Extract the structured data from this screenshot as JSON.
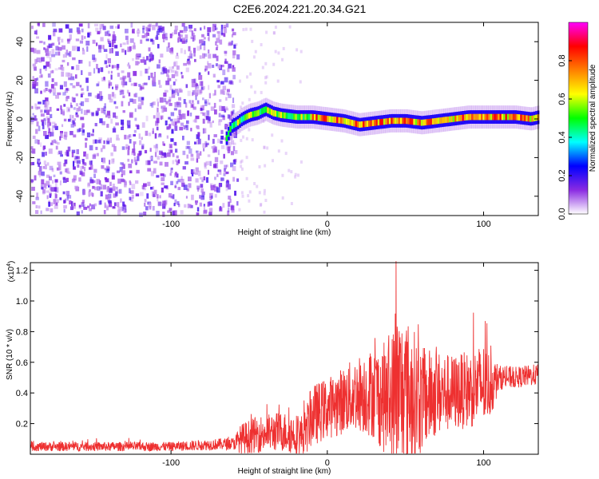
{
  "title": "C2E6.2024.221.20.34.G21",
  "chart_data": [
    {
      "type": "heatmap",
      "xlabel": "Height of straight line (km)",
      "ylabel": "Frequency (Hz)",
      "xlim": [
        -190,
        135
      ],
      "ylim": [
        -50,
        50
      ],
      "xticks": [
        -100,
        0,
        100
      ],
      "yticks": [
        -40,
        -20,
        0,
        20,
        40
      ],
      "colorbar": {
        "label": "Normalized spectral amplitude",
        "range": [
          0.0,
          1.0
        ],
        "ticks": [
          0.0,
          0.2,
          0.4,
          0.6,
          0.8
        ],
        "colors": [
          "#ffffff",
          "#8a2be2",
          "#0000ff",
          "#00ffff",
          "#00ff00",
          "#ffff00",
          "#ff8000",
          "#ff0000",
          "#ff00ff"
        ]
      },
      "ridge": {
        "x": [
          -65,
          -62,
          -58,
          -55,
          -50,
          -45,
          -40,
          -35,
          -30,
          -20,
          -10,
          0,
          10,
          20,
          30,
          40,
          50,
          60,
          70,
          80,
          90,
          100,
          110,
          120,
          130,
          135
        ],
        "y": [
          -10,
          -4,
          -2,
          0,
          2,
          3,
          5,
          3,
          2,
          1,
          1,
          0,
          -1,
          -3,
          -2,
          -1,
          -1,
          -2,
          -1,
          0,
          1,
          1,
          1,
          1,
          0,
          1
        ]
      },
      "noise_region_x": [
        -190,
        -57
      ]
    },
    {
      "type": "line",
      "xlabel": "Height of straight line (km)",
      "ylabel": "SNR (10 * v/v)",
      "yscale_label": "(x10",
      "yscale_exp": "4",
      "xlim": [
        -190,
        135
      ],
      "ylim": [
        0,
        1.25
      ],
      "xticks": [
        -100,
        0,
        100
      ],
      "yticks": [
        0.2,
        0.4,
        0.6,
        0.8,
        1.0,
        1.2
      ],
      "series": [
        {
          "color": "#ee3030",
          "envelope": {
            "x": [
              -190,
              -100,
              -60,
              -55,
              -45,
              -30,
              -15,
              -10,
              0,
              10,
              20,
              30,
              40,
              45,
              50,
              55,
              60,
              70,
              80,
              90,
              100,
              105,
              110,
              120,
              135
            ],
            "base": [
              0.05,
              0.05,
              0.07,
              0.1,
              0.13,
              0.15,
              0.12,
              0.25,
              0.3,
              0.35,
              0.4,
              0.4,
              0.35,
              0.4,
              0.4,
              0.38,
              0.35,
              0.4,
              0.4,
              0.42,
              0.45,
              0.45,
              0.5,
              0.5,
              0.52
            ],
            "amp": [
              0.03,
              0.03,
              0.04,
              0.1,
              0.12,
              0.13,
              0.14,
              0.2,
              0.2,
              0.22,
              0.25,
              0.3,
              0.4,
              0.55,
              0.5,
              0.45,
              0.35,
              0.28,
              0.25,
              0.25,
              0.28,
              0.2,
              0.08,
              0.07,
              0.07
            ]
          },
          "peak": {
            "x": 44,
            "y": 1.26
          }
        }
      ]
    }
  ]
}
